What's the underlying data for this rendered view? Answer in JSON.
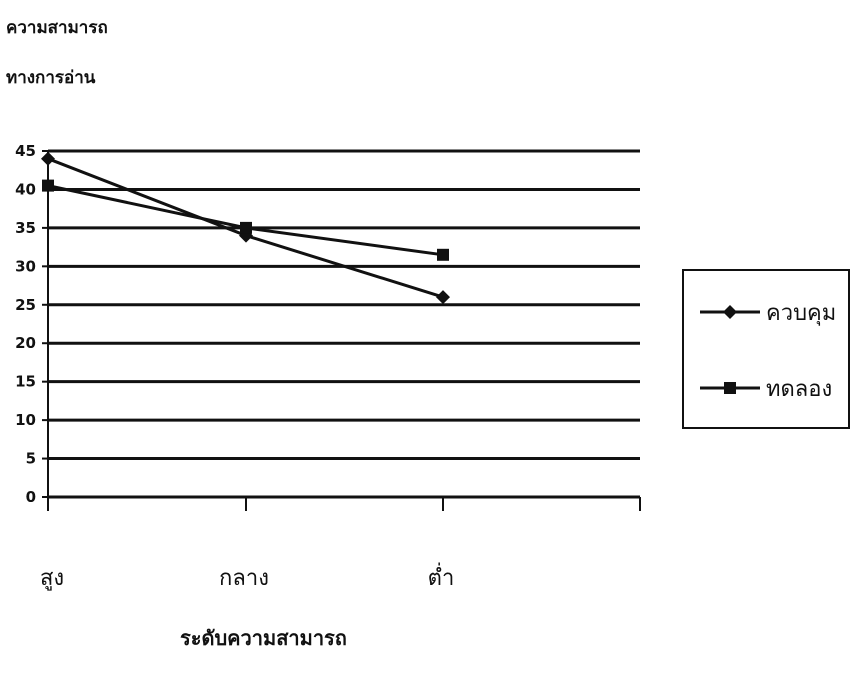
{
  "chart_data": {
    "type": "line",
    "ylabel_lines": [
      "ความสามารถ",
      "ทางการอ่าน"
    ],
    "xlabel": "ระดับความสามารถ",
    "categories": [
      "สูง",
      "กลาง",
      "ต่ำ"
    ],
    "ylim": [
      0,
      45
    ],
    "yticks": [
      0,
      5,
      10,
      15,
      20,
      25,
      30,
      35,
      40,
      45
    ],
    "grid": true,
    "legend_position": "right",
    "series": [
      {
        "name": "ควบคุม",
        "marker": "diamond",
        "values": [
          44,
          34,
          26
        ]
      },
      {
        "name": "ทดลอง",
        "marker": "square",
        "values": [
          40.5,
          35,
          31.5
        ]
      }
    ]
  }
}
